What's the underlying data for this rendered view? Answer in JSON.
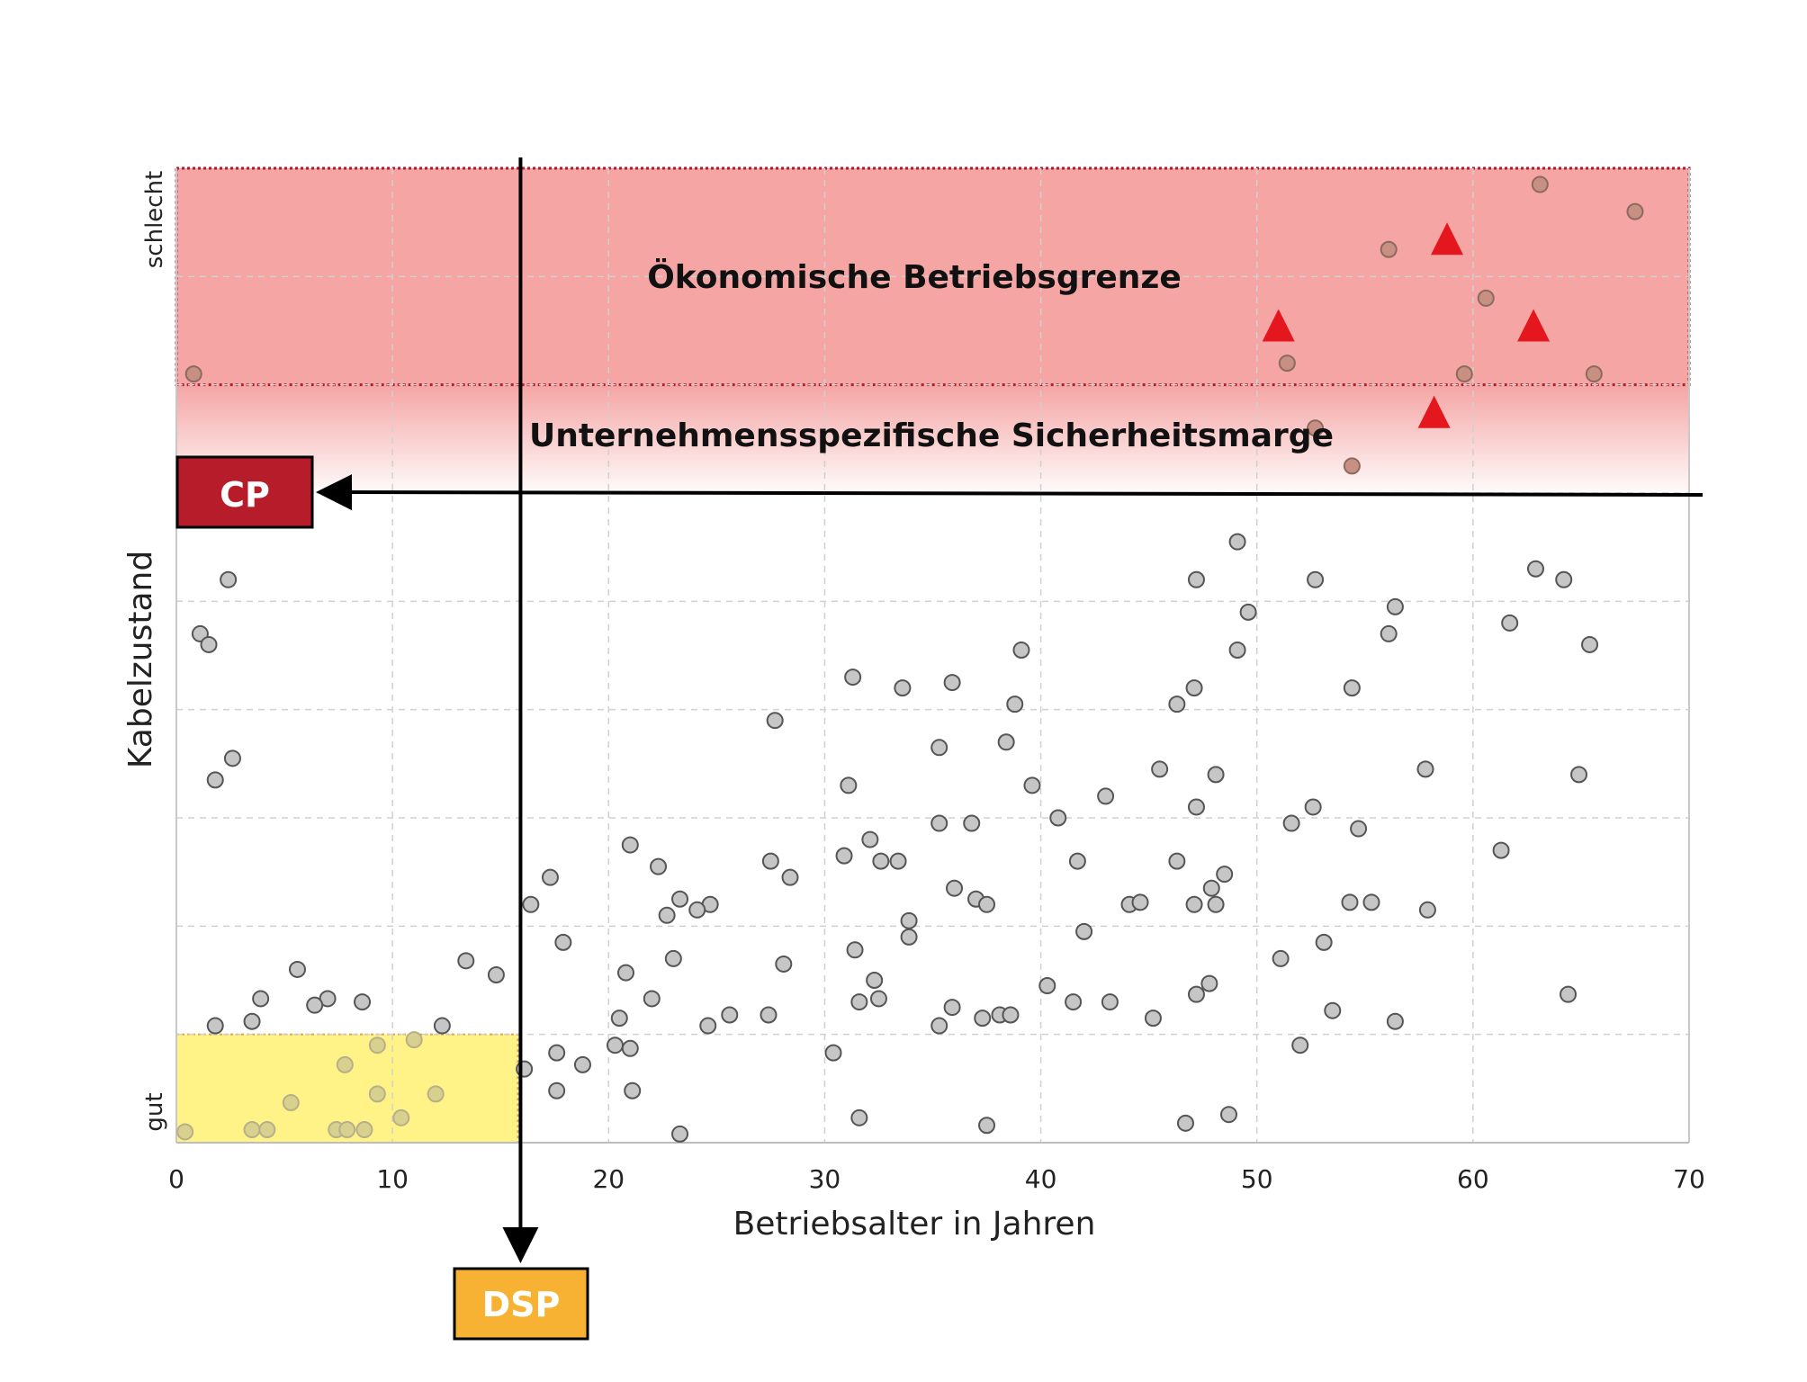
{
  "chart_data": {
    "type": "scatter",
    "xlabel": "Betriebsalter in Jahren",
    "ylabel": "Kabelzustand",
    "y_tick_labels": {
      "low": "gut",
      "high": "schlecht"
    },
    "xlim": [
      0,
      70
    ],
    "ylim": [
      0,
      9
    ],
    "x_ticks": [
      0,
      10,
      20,
      30,
      40,
      50,
      60,
      70
    ],
    "grid": true,
    "colors": {
      "economic_zone": "#F4A5A4",
      "economic_border": "#B01C2E",
      "safety_gradient": "#F4A5A4",
      "cp_box": "#B71C2A",
      "dsp_box": "#F7B233",
      "lowrisk_zone": "#FFF27A",
      "triangle": "#E4161E",
      "point_fill": "#C6C6C6",
      "point_stroke": "#555555"
    },
    "zones": {
      "economic_limit": {
        "label": "Ökonomische Betriebsgrenze",
        "y_from": 7.0,
        "y_to": 9.0
      },
      "safety_margin": {
        "label": "Unternehmensspezifische Sicherheitsmarge",
        "y_from": 6.0,
        "y_to": 7.0
      },
      "low_risk": {
        "x_from": 0,
        "x_to": 15.8,
        "y_from": 0,
        "y_to": 1.0
      }
    },
    "markers": {
      "cp": {
        "label": "CP",
        "y": 6.0
      },
      "dsp": {
        "label": "DSP",
        "x": 15.8
      }
    },
    "series": [
      {
        "marker": "circle",
        "points": [
          [
            0.8,
            7.1
          ],
          [
            63.1,
            8.85
          ],
          [
            67.5,
            8.6
          ],
          [
            56.1,
            8.25
          ],
          [
            60.6,
            7.8
          ],
          [
            51.4,
            7.2
          ],
          [
            59.6,
            7.1
          ],
          [
            65.6,
            7.1
          ],
          [
            52.7,
            6.6
          ],
          [
            54.4,
            6.25
          ],
          [
            2.4,
            5.2
          ],
          [
            1.1,
            4.7
          ],
          [
            1.5,
            4.6
          ],
          [
            2.6,
            3.55
          ],
          [
            1.8,
            3.35
          ],
          [
            49.1,
            5.55
          ],
          [
            47.2,
            5.2
          ],
          [
            52.7,
            5.2
          ],
          [
            62.9,
            5.3
          ],
          [
            64.2,
            5.2
          ],
          [
            56.4,
            4.95
          ],
          [
            49.6,
            4.9
          ],
          [
            61.7,
            4.8
          ],
          [
            56.1,
            4.7
          ],
          [
            49.1,
            4.55
          ],
          [
            65.4,
            4.6
          ],
          [
            39.1,
            4.55
          ],
          [
            31.3,
            4.3
          ],
          [
            35.9,
            4.25
          ],
          [
            33.6,
            4.2
          ],
          [
            47.1,
            4.2
          ],
          [
            54.4,
            4.2
          ],
          [
            46.3,
            4.05
          ],
          [
            38.8,
            4.05
          ],
          [
            27.7,
            3.9
          ],
          [
            38.4,
            3.7
          ],
          [
            35.3,
            3.65
          ],
          [
            57.8,
            3.45
          ],
          [
            64.9,
            3.4
          ],
          [
            45.5,
            3.45
          ],
          [
            48.1,
            3.4
          ],
          [
            31.1,
            3.3
          ],
          [
            39.6,
            3.3
          ],
          [
            43.0,
            3.2
          ],
          [
            47.2,
            3.1
          ],
          [
            52.6,
            3.1
          ],
          [
            40.8,
            3.0
          ],
          [
            35.3,
            2.95
          ],
          [
            36.8,
            2.95
          ],
          [
            51.6,
            2.95
          ],
          [
            54.7,
            2.9
          ],
          [
            32.1,
            2.8
          ],
          [
            30.9,
            2.65
          ],
          [
            61.3,
            2.7
          ],
          [
            21.0,
            2.75
          ],
          [
            27.5,
            2.6
          ],
          [
            32.6,
            2.6
          ],
          [
            33.4,
            2.6
          ],
          [
            41.7,
            2.6
          ],
          [
            46.3,
            2.6
          ],
          [
            48.5,
            2.48
          ],
          [
            22.3,
            2.55
          ],
          [
            17.3,
            2.45
          ],
          [
            28.4,
            2.45
          ],
          [
            36.0,
            2.35
          ],
          [
            47.9,
            2.35
          ],
          [
            16.4,
            2.2
          ],
          [
            23.3,
            2.25
          ],
          [
            24.7,
            2.2
          ],
          [
            37.0,
            2.25
          ],
          [
            37.5,
            2.2
          ],
          [
            44.1,
            2.2
          ],
          [
            44.6,
            2.22
          ],
          [
            47.1,
            2.2
          ],
          [
            48.1,
            2.2
          ],
          [
            54.3,
            2.22
          ],
          [
            55.3,
            2.22
          ],
          [
            22.7,
            2.1
          ],
          [
            24.1,
            2.15
          ],
          [
            57.9,
            2.15
          ],
          [
            33.9,
            2.05
          ],
          [
            33.9,
            1.9
          ],
          [
            42.0,
            1.95
          ],
          [
            17.9,
            1.85
          ],
          [
            53.1,
            1.85
          ],
          [
            31.4,
            1.78
          ],
          [
            5.6,
            1.6
          ],
          [
            13.4,
            1.68
          ],
          [
            14.8,
            1.55
          ],
          [
            23.0,
            1.7
          ],
          [
            28.1,
            1.65
          ],
          [
            51.1,
            1.7
          ],
          [
            20.8,
            1.57
          ],
          [
            32.3,
            1.5
          ],
          [
            40.3,
            1.45
          ],
          [
            3.9,
            1.33
          ],
          [
            7.0,
            1.33
          ],
          [
            8.6,
            1.3
          ],
          [
            6.4,
            1.27
          ],
          [
            22.0,
            1.33
          ],
          [
            31.6,
            1.3
          ],
          [
            32.5,
            1.33
          ],
          [
            35.9,
            1.25
          ],
          [
            41.5,
            1.3
          ],
          [
            43.2,
            1.3
          ],
          [
            47.2,
            1.37
          ],
          [
            47.8,
            1.47
          ],
          [
            64.4,
            1.37
          ],
          [
            53.5,
            1.22
          ],
          [
            25.6,
            1.18
          ],
          [
            27.4,
            1.18
          ],
          [
            38.1,
            1.18
          ],
          [
            38.6,
            1.18
          ],
          [
            37.3,
            1.15
          ],
          [
            45.2,
            1.15
          ],
          [
            1.8,
            1.08
          ],
          [
            3.5,
            1.12
          ],
          [
            12.3,
            1.08
          ],
          [
            20.5,
            1.15
          ],
          [
            24.6,
            1.08
          ],
          [
            35.3,
            1.08
          ],
          [
            56.4,
            1.12
          ],
          [
            20.3,
            0.9
          ],
          [
            21.0,
            0.87
          ],
          [
            52.0,
            0.9
          ],
          [
            17.6,
            0.83
          ],
          [
            30.4,
            0.83
          ],
          [
            9.3,
            0.9
          ],
          [
            11.0,
            0.95
          ],
          [
            7.8,
            0.72
          ],
          [
            16.1,
            0.68
          ],
          [
            18.8,
            0.72
          ],
          [
            17.6,
            0.48
          ],
          [
            9.3,
            0.45
          ],
          [
            12.0,
            0.45
          ],
          [
            21.1,
            0.48
          ],
          [
            5.3,
            0.37
          ],
          [
            10.4,
            0.23
          ],
          [
            31.6,
            0.23
          ],
          [
            48.7,
            0.26
          ],
          [
            0.4,
            0.1
          ],
          [
            3.5,
            0.12
          ],
          [
            4.2,
            0.12
          ],
          [
            7.4,
            0.12
          ],
          [
            7.9,
            0.12
          ],
          [
            8.7,
            0.12
          ],
          [
            23.3,
            0.08
          ],
          [
            37.5,
            0.16
          ],
          [
            46.7,
            0.18
          ]
        ]
      },
      {
        "marker": "triangle",
        "points": [
          [
            58.8,
            8.35
          ],
          [
            51.0,
            7.55
          ],
          [
            62.8,
            7.55
          ],
          [
            58.2,
            6.75
          ]
        ]
      }
    ]
  }
}
